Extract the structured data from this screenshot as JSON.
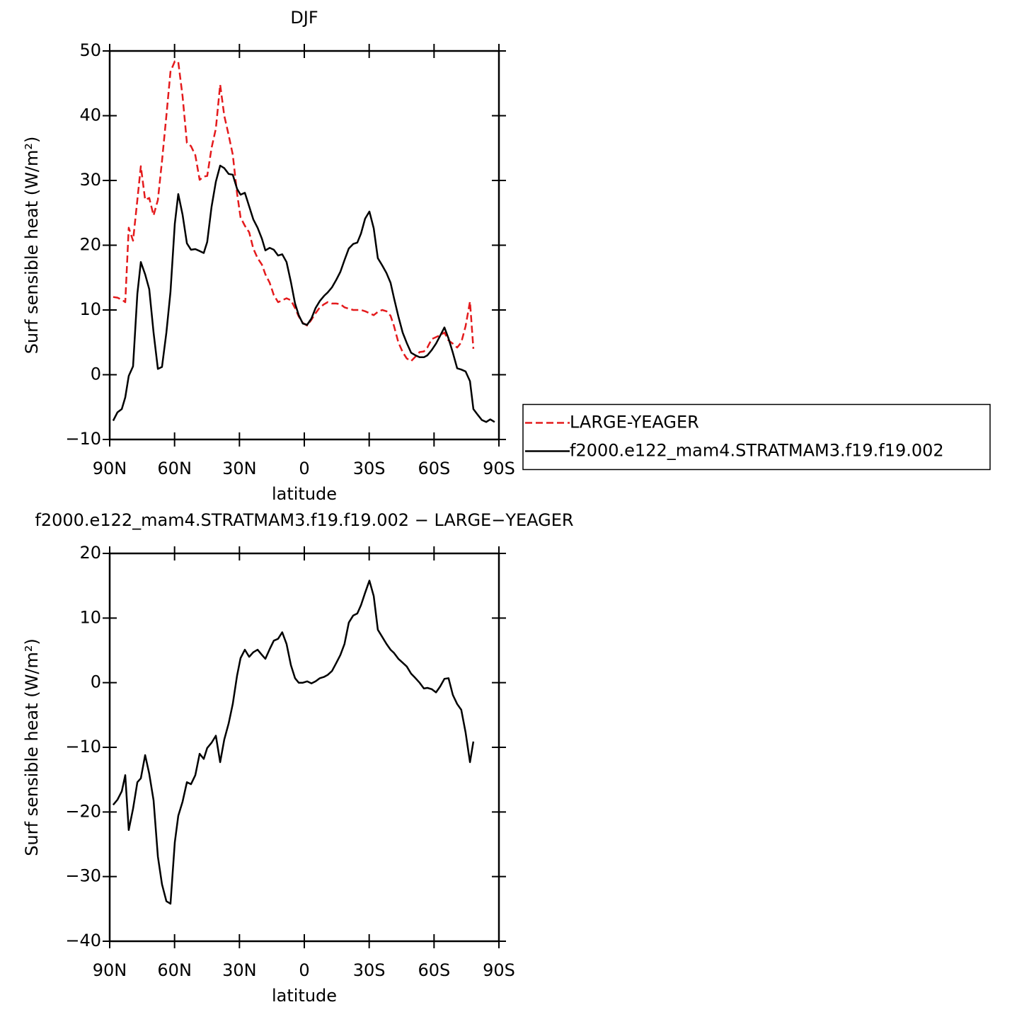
{
  "chart_data": [
    {
      "type": "line",
      "title": "DJF",
      "x_label": "latitude",
      "y_label": "Surf sensible heat (W/m²)",
      "x": [
        88.4,
        86.4,
        84.4,
        82.8,
        81.2,
        79.2,
        77.2,
        75.6,
        73.6,
        71.7,
        69.7,
        67.7,
        65.8,
        63.8,
        61.9,
        59.9,
        58.3,
        56.3,
        54.3,
        52.4,
        50.4,
        48.4,
        46.5,
        44.9,
        42.9,
        40.9,
        38.9,
        37.0,
        35.0,
        33.1,
        31.1,
        29.5,
        27.5,
        25.5,
        23.6,
        21.6,
        19.6,
        18.0,
        16.0,
        14.1,
        12.1,
        10.2,
        8.2,
        6.2,
        4.3,
        2.6,
        0.7,
        -1.3,
        -3.3,
        -5.2,
        -7.2,
        -9.2,
        -10.8,
        -12.8,
        -14.7,
        -16.7,
        -18.6,
        -20.6,
        -22.6,
        -24.5,
        -26.2,
        -28.1,
        -30.1,
        -32.1,
        -34.0,
        -36.0,
        -38.0,
        -39.9,
        -41.5,
        -43.5,
        -45.5,
        -47.4,
        -49.4,
        -51.4,
        -53.3,
        -55.3,
        -56.9,
        -58.9,
        -60.9,
        -62.8,
        -64.8,
        -66.7,
        -68.7,
        -70.7,
        -72.6,
        -74.6,
        -76.6,
        -78.2,
        -80.2,
        -82.1,
        -84.1,
        -86.0,
        -88.0
      ],
      "series": [
        {
          "name": "LARGE-YEAGER",
          "color": "#e41a1c",
          "dash": true,
          "values": [
            12.0,
            11.9,
            11.6,
            11.2,
            22.7,
            20.7,
            27,
            32.2,
            27,
            27.3,
            24.6,
            27.0,
            33,
            40,
            46.8,
            48.4,
            48.3,
            43,
            35.8,
            35.3,
            33.9,
            30.1,
            30.6,
            30.7,
            35,
            38,
            44.8,
            40,
            37,
            34,
            28,
            24.3,
            23,
            22,
            19.5,
            18.0,
            17,
            15.5,
            14.2,
            12.3,
            11.2,
            11.5,
            11.8,
            11.5,
            10.3,
            9.0,
            8.0,
            7.6,
            8.5,
            9.5,
            10.4,
            10.9,
            11.2,
            11.0,
            11.0,
            10.9,
            10.4,
            10.2,
            10.0,
            10.0,
            10.0,
            9.8,
            9.5,
            9.2,
            9.7,
            10.0,
            9.8,
            9.1,
            7.5,
            5.0,
            3.5,
            2.5,
            2.1,
            2.8,
            3.5,
            3.6,
            4.2,
            5.5,
            5.8,
            6.1,
            6.5,
            5.3,
            4.8,
            4.2,
            5.0,
            7.5,
            11.3,
            4.0,
            null,
            null,
            null,
            null,
            null
          ]
        },
        {
          "name": "f2000.e122_mam4.STRATMAM3.f19.f19.002",
          "color": "#000000",
          "dash": false,
          "values": [
            -7.1,
            -5.8,
            -5.3,
            -3.5,
            -0.2,
            1.3,
            12.5,
            17.4,
            15.5,
            13.2,
            6.5,
            0.9,
            1.2,
            6.5,
            12.8,
            23.3,
            27.9,
            24.7,
            20.3,
            19.3,
            19.4,
            19.1,
            18.8,
            20.5,
            25.9,
            29.8,
            32.3,
            31.9,
            31.0,
            30.9,
            28.7,
            27.8,
            28.1,
            26.0,
            24.0,
            22.7,
            21.0,
            19.2,
            19.6,
            19.3,
            18.4,
            18.6,
            17.4,
            14.3,
            11.0,
            9.2,
            7.9,
            7.7,
            8.7,
            10.3,
            11.4,
            12.2,
            12.7,
            13.5,
            14.6,
            15.9,
            17.7,
            19.5,
            20.2,
            20.4,
            21.8,
            24.1,
            25.2,
            22.6,
            18.0,
            16.9,
            15.7,
            14.2,
            11.8,
            9.0,
            6.5,
            4.9,
            3.4,
            3.0,
            2.7,
            2.7,
            3.0,
            3.8,
            4.8,
            6.0,
            7.3,
            5.6,
            3.4,
            1.0,
            0.8,
            0.5,
            -1.0,
            -5.3,
            -6.2,
            -7.0,
            -7.3,
            -6.9,
            -7.3
          ]
        }
      ],
      "xlim": [
        90,
        -90
      ],
      "xticks": [
        {
          "value": 90,
          "label": "90N"
        },
        {
          "value": 60,
          "label": "60N"
        },
        {
          "value": 30,
          "label": "30N"
        },
        0,
        {
          "value": -30,
          "label": "30S"
        },
        {
          "value": -60,
          "label": "60S"
        },
        {
          "value": -90,
          "label": "90S"
        }
      ],
      "ylim": [
        -10,
        50
      ],
      "yticks": [
        {
          "value": -10,
          "label": "−10"
        },
        0,
        10,
        20,
        30,
        40,
        50
      ],
      "legend": "right"
    },
    {
      "type": "line",
      "title": "f2000.e122_mam4.STRATMAM3.f19.f19.002 − LARGE−YEAGER",
      "x_label": "latitude",
      "y_label": "Surf sensible heat (W/m²)",
      "x": [
        88.4,
        86.4,
        84.4,
        82.8,
        81.2,
        79.2,
        77.2,
        75.6,
        73.6,
        71.7,
        69.7,
        67.7,
        65.8,
        63.8,
        61.9,
        59.9,
        58.3,
        56.3,
        54.3,
        52.4,
        50.4,
        48.4,
        46.5,
        44.9,
        42.9,
        40.9,
        38.9,
        37.0,
        35.0,
        33.1,
        31.1,
        29.5,
        27.5,
        25.5,
        23.6,
        21.6,
        19.6,
        18.0,
        16.0,
        14.1,
        12.1,
        10.2,
        8.2,
        6.2,
        4.3,
        2.6,
        0.7,
        -1.3,
        -3.3,
        -5.2,
        -7.2,
        -9.2,
        -10.8,
        -12.8,
        -14.7,
        -16.7,
        -18.6,
        -20.6,
        -22.6,
        -24.5,
        -26.2,
        -28.1,
        -30.1,
        -32.1,
        -34.0,
        -36.0,
        -38.0,
        -39.9,
        -41.5,
        -43.5,
        -45.5,
        -47.4,
        -49.4,
        -51.4,
        -53.3,
        -55.3,
        -56.9,
        -58.9,
        -60.9,
        -62.8,
        -64.8,
        -66.7,
        -68.7,
        -70.7,
        -72.6,
        -74.6,
        -76.6,
        -78.2,
        -80.2,
        -82.1,
        -84.1,
        -86.0,
        -88.0
      ],
      "series": [
        {
          "color": "#000000",
          "dash": false,
          "values": [
            -18.9,
            -18.1,
            -16.8,
            -14.3,
            -22.8,
            -19.5,
            -15.4,
            -14.8,
            -11.2,
            -14.1,
            -18.2,
            -26.9,
            -31.2,
            -33.8,
            -34.2,
            -24.7,
            -20.6,
            -18.4,
            -15.4,
            -15.7,
            -14.3,
            -11.0,
            -11.8,
            -10.1,
            -9.3,
            -8.2,
            -12.3,
            -8.8,
            -6.3,
            -3.3,
            1.1,
            3.8,
            5.1,
            4.0,
            4.7,
            5.1,
            4.3,
            3.7,
            5.2,
            6.5,
            6.8,
            7.8,
            6.0,
            2.7,
            0.7,
            0.0,
            0.0,
            0.2,
            -0.1,
            0.2,
            0.7,
            0.9,
            1.2,
            1.8,
            3.0,
            4.3,
            6.0,
            9.3,
            10.4,
            10.7,
            12.0,
            13.9,
            15.8,
            13.4,
            8.2,
            7.1,
            6.0,
            5.1,
            4.6,
            3.7,
            3.1,
            2.5,
            1.4,
            0.7,
            0.0,
            -0.9,
            -0.8,
            -1.0,
            -1.5,
            -0.6,
            0.6,
            0.7,
            -1.9,
            -3.3,
            -4.2,
            -7.7,
            -12.3,
            -9.1,
            null,
            null,
            null,
            null,
            null
          ]
        }
      ],
      "xlim": [
        90,
        -90
      ],
      "xticks": [
        {
          "value": 90,
          "label": "90N"
        },
        {
          "value": 60,
          "label": "60N"
        },
        {
          "value": 30,
          "label": "30N"
        },
        0,
        {
          "value": -30,
          "label": "30S"
        },
        {
          "value": -60,
          "label": "60S"
        },
        {
          "value": -90,
          "label": "90S"
        }
      ],
      "ylim": [
        -40,
        20
      ],
      "yticks": [
        {
          "value": -40,
          "label": "−40"
        },
        {
          "value": -30,
          "label": "−30"
        },
        {
          "value": -20,
          "label": "−20"
        },
        {
          "value": -10,
          "label": "−10"
        },
        0,
        10,
        20
      ]
    }
  ]
}
